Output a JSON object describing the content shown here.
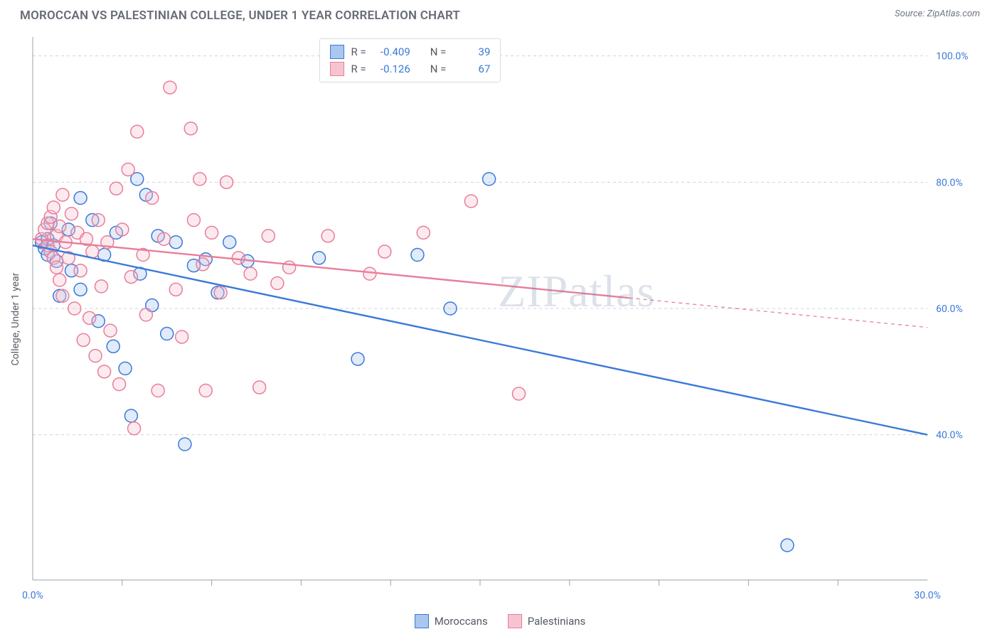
{
  "title": "MOROCCAN VS PALESTINIAN COLLEGE, UNDER 1 YEAR CORRELATION CHART",
  "source": "Source: ZipAtlas.com",
  "y_axis_label": "College, Under 1 year",
  "watermark": "ZIPatlas",
  "chart": {
    "type": "scatter",
    "background_color": "#ffffff",
    "grid_color": "#cfd3da",
    "axis_color": "#9aa0ab",
    "tick_label_color": "#3b7ad9",
    "label_fontsize": 14,
    "xlim": [
      0,
      30
    ],
    "ylim": [
      17,
      103
    ],
    "x_ticks_major": [
      0,
      30
    ],
    "x_ticks_minor": [
      3,
      6,
      9,
      12,
      15,
      18,
      21,
      24,
      27
    ],
    "x_tick_labels": {
      "0": "0.0%",
      "30": "30.0%"
    },
    "y_ticks": [
      40,
      60,
      80,
      100
    ],
    "y_tick_labels": {
      "40": "40.0%",
      "60": "60.0%",
      "80": "80.0%",
      "100": "100.0%"
    },
    "marker_radius": 9,
    "marker_stroke_width": 1.5,
    "marker_fill_opacity": 0.35,
    "line_width": 2.4
  },
  "series": [
    {
      "key": "moroccans",
      "legend_label": "Moroccans",
      "color_stroke": "#3b7ad9",
      "color_fill": "#a9c7ef",
      "R": "-0.409",
      "N": "39",
      "trend": {
        "x1": 0,
        "y1": 70,
        "x2": 30,
        "y2": 40,
        "solid_until_x": 30
      },
      "points": [
        [
          0.3,
          70.5
        ],
        [
          0.4,
          69.5
        ],
        [
          0.5,
          71.0
        ],
        [
          0.5,
          68.5
        ],
        [
          0.6,
          73.5
        ],
        [
          0.7,
          70.0
        ],
        [
          0.8,
          67.5
        ],
        [
          0.9,
          62.0
        ],
        [
          1.2,
          72.5
        ],
        [
          1.3,
          66.0
        ],
        [
          1.6,
          77.5
        ],
        [
          1.6,
          63.0
        ],
        [
          2.0,
          74.0
        ],
        [
          2.2,
          58.0
        ],
        [
          2.4,
          68.5
        ],
        [
          2.7,
          54.0
        ],
        [
          2.8,
          72.0
        ],
        [
          3.1,
          50.5
        ],
        [
          3.3,
          43.0
        ],
        [
          3.5,
          80.5
        ],
        [
          3.6,
          65.5
        ],
        [
          3.8,
          78.0
        ],
        [
          4.0,
          60.5
        ],
        [
          4.2,
          71.5
        ],
        [
          4.5,
          56.0
        ],
        [
          4.8,
          70.5
        ],
        [
          5.1,
          38.5
        ],
        [
          5.4,
          66.8
        ],
        [
          5.8,
          67.8
        ],
        [
          6.2,
          62.5
        ],
        [
          6.6,
          70.5
        ],
        [
          7.2,
          67.5
        ],
        [
          9.6,
          68.0
        ],
        [
          10.9,
          52.0
        ],
        [
          12.9,
          68.5
        ],
        [
          14.0,
          60.0
        ],
        [
          15.3,
          80.5
        ],
        [
          25.3,
          22.5
        ]
      ]
    },
    {
      "key": "palestinians",
      "legend_label": "Palestinians",
      "color_stroke": "#e87e9a",
      "color_fill": "#f6c4d1",
      "R": "-0.126",
      "N": "67",
      "trend": {
        "x1": 0,
        "y1": 71,
        "x2": 30,
        "y2": 57,
        "solid_until_x": 20
      },
      "points": [
        [
          0.3,
          71.0
        ],
        [
          0.4,
          72.5
        ],
        [
          0.5,
          70.0
        ],
        [
          0.5,
          73.5
        ],
        [
          0.6,
          69.0
        ],
        [
          0.6,
          74.5
        ],
        [
          0.7,
          68.0
        ],
        [
          0.7,
          76.0
        ],
        [
          0.8,
          66.5
        ],
        [
          0.8,
          71.5
        ],
        [
          0.9,
          64.5
        ],
        [
          0.9,
          73.0
        ],
        [
          1.0,
          78.0
        ],
        [
          1.0,
          62.0
        ],
        [
          1.1,
          70.5
        ],
        [
          1.2,
          68.0
        ],
        [
          1.3,
          75.0
        ],
        [
          1.4,
          60.0
        ],
        [
          1.5,
          72.0
        ],
        [
          1.6,
          66.0
        ],
        [
          1.7,
          55.0
        ],
        [
          1.8,
          71.0
        ],
        [
          1.9,
          58.5
        ],
        [
          2.0,
          69.0
        ],
        [
          2.1,
          52.5
        ],
        [
          2.2,
          74.0
        ],
        [
          2.3,
          63.5
        ],
        [
          2.4,
          50.0
        ],
        [
          2.5,
          70.5
        ],
        [
          2.6,
          56.5
        ],
        [
          2.8,
          79.0
        ],
        [
          2.9,
          48.0
        ],
        [
          3.0,
          72.5
        ],
        [
          3.2,
          82.0
        ],
        [
          3.3,
          65.0
        ],
        [
          3.4,
          41.0
        ],
        [
          3.5,
          88.0
        ],
        [
          3.7,
          68.5
        ],
        [
          3.8,
          59.0
        ],
        [
          4.0,
          77.5
        ],
        [
          4.2,
          47.0
        ],
        [
          4.4,
          71.0
        ],
        [
          4.6,
          95.0
        ],
        [
          4.8,
          63.0
        ],
        [
          5.0,
          55.5
        ],
        [
          5.3,
          88.5
        ],
        [
          5.4,
          74.0
        ],
        [
          5.6,
          80.5
        ],
        [
          5.7,
          67.0
        ],
        [
          5.8,
          47.0
        ],
        [
          6.0,
          72.0
        ],
        [
          6.3,
          62.5
        ],
        [
          6.5,
          80.0
        ],
        [
          6.9,
          68.0
        ],
        [
          7.3,
          65.5
        ],
        [
          7.6,
          47.5
        ],
        [
          7.9,
          71.5
        ],
        [
          8.2,
          64.0
        ],
        [
          8.6,
          66.5
        ],
        [
          9.9,
          71.5
        ],
        [
          11.3,
          65.5
        ],
        [
          11.8,
          69.0
        ],
        [
          13.1,
          72.0
        ],
        [
          14.7,
          77.0
        ],
        [
          16.3,
          46.5
        ]
      ]
    }
  ],
  "legend_top": {
    "R_label": "R =",
    "N_label": "N ="
  }
}
